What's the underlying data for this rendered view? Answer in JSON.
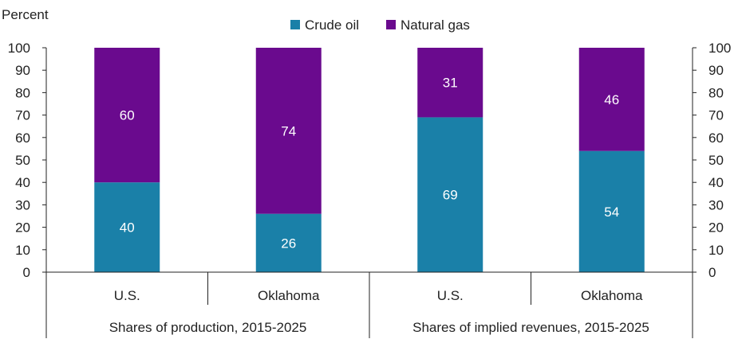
{
  "chart_data": {
    "type": "bar",
    "stacked": true,
    "ylabel": "Percent",
    "ylim": [
      0,
      100
    ],
    "yticks": [
      0,
      10,
      20,
      30,
      40,
      50,
      60,
      70,
      80,
      90,
      100
    ],
    "categories": [
      "U.S.",
      "Oklahoma",
      "U.S.",
      "Oklahoma"
    ],
    "groups": [
      {
        "label": "Shares of production, 2015-2025",
        "categories": [
          0,
          1
        ]
      },
      {
        "label": "Shares of implied revenues, 2015-2025",
        "categories": [
          2,
          3
        ]
      }
    ],
    "series": [
      {
        "name": "Crude oil",
        "color": "#1a80a8",
        "values": [
          40,
          26,
          69,
          54
        ]
      },
      {
        "name": "Natural gas",
        "color": "#6a0a8e",
        "values": [
          60,
          74,
          31,
          46
        ]
      }
    ],
    "legend_position": "top-center",
    "grid": false
  }
}
